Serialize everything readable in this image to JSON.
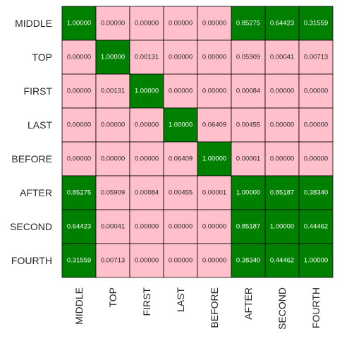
{
  "chart_data": {
    "type": "heatmap",
    "title": "",
    "xlabel": "",
    "ylabel": "",
    "row_labels": [
      "MIDDLE",
      "TOP",
      "FIRST",
      "LAST",
      "BEFORE",
      "AFTER",
      "SECOND",
      "FOURTH"
    ],
    "col_labels": [
      "MIDDLE",
      "TOP",
      "FIRST",
      "LAST",
      "BEFORE",
      "AFTER",
      "SECOND",
      "FOURTH"
    ],
    "values": [
      [
        "1.00000",
        "0.00000",
        "0.00000",
        "0.00000",
        "0.00000",
        "0.85275",
        "0.64423",
        "0.31559"
      ],
      [
        "0.00000",
        "1.00000",
        "0.00131",
        "0.00000",
        "0.00000",
        "0.05909",
        "0.00041",
        "0.00713"
      ],
      [
        "0.00000",
        "0.00131",
        "1.00000",
        "0.00000",
        "0.00000",
        "0.00084",
        "0.00000",
        "0.00000"
      ],
      [
        "0.00000",
        "0.00000",
        "0.00000",
        "1.00000",
        "0.06409",
        "0.00455",
        "0.00000",
        "0.00000"
      ],
      [
        "0.00000",
        "0.00000",
        "0.00000",
        "0.06409",
        "1.00000",
        "0.00001",
        "0.00000",
        "0.00000"
      ],
      [
        "0.85275",
        "0.05909",
        "0.00084",
        "0.00455",
        "0.00001",
        "1.00000",
        "0.85187",
        "0.38340"
      ],
      [
        "0.64423",
        "0.00041",
        "0.00000",
        "0.00000",
        "0.00000",
        "0.85187",
        "1.00000",
        "0.44462"
      ],
      [
        "0.31559",
        "0.00713",
        "0.00000",
        "0.00000",
        "0.00000",
        "0.38340",
        "0.44462",
        "1.00000"
      ]
    ],
    "colors": {
      "high": "#008000",
      "low": "#ffc0cb",
      "text_on_high": "#ffffff",
      "text_on_low": "#262626",
      "grid": "#000000"
    },
    "grid": true,
    "legend": "none"
  }
}
